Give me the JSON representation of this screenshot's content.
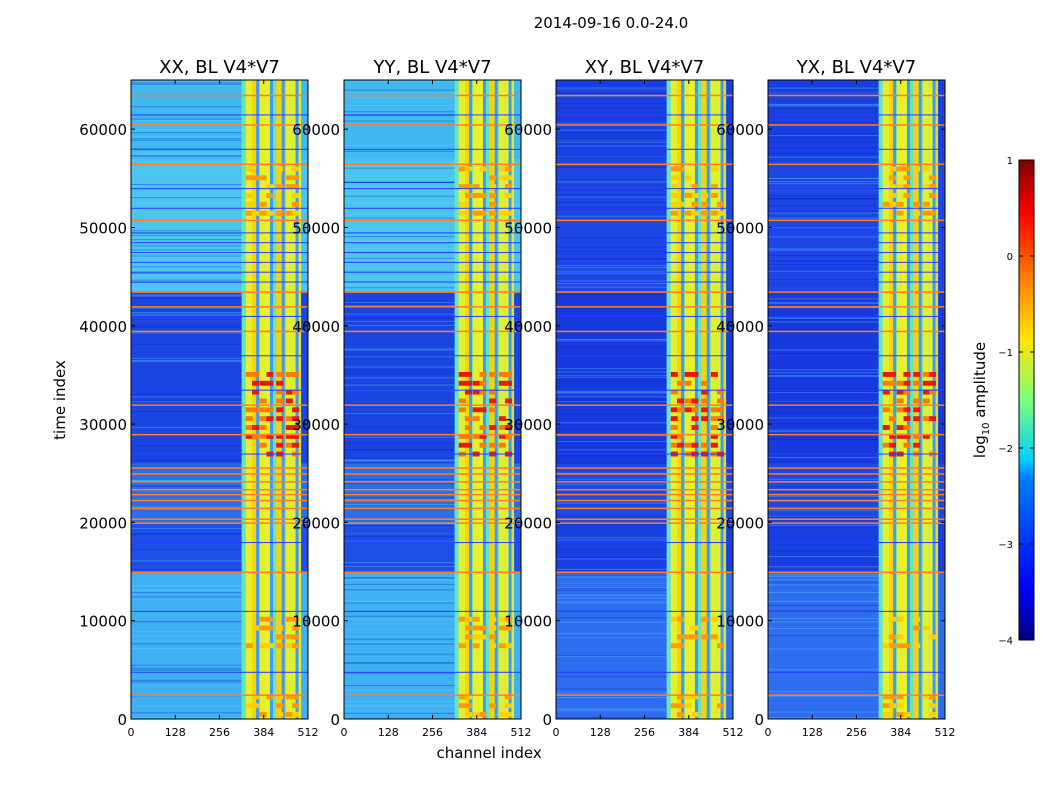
{
  "figure": {
    "suptitle": "2014-09-16 0.0-24.0",
    "colors": {
      "background": "#ffffff",
      "spine": "#000000",
      "flag_line": "#ff7f2a",
      "gap_line": "#2a3cff"
    }
  },
  "chart_data": [
    {
      "type": "heatmap",
      "title": "XX, BL V4*V7",
      "xlabel": "",
      "ylabel": "time index",
      "xticks": [
        "0",
        "128",
        "256",
        "384",
        "512"
      ],
      "yticks": [
        "0",
        "10000",
        "20000",
        "30000",
        "40000",
        "50000",
        "60000"
      ],
      "xlim": [
        0,
        512
      ],
      "ylim": [
        0,
        65000
      ],
      "interference_band": [
        320,
        480
      ],
      "colormap": "jet",
      "zlim": [
        -4,
        1
      ]
    },
    {
      "type": "heatmap",
      "title": "YY, BL V4*V7",
      "xlabel": "channel index",
      "ylabel": "",
      "xticks": [
        "0",
        "128",
        "256",
        "384",
        "512"
      ],
      "yticks": [
        "0",
        "10000",
        "20000",
        "30000",
        "40000",
        "50000",
        "60000"
      ],
      "xlim": [
        0,
        512
      ],
      "ylim": [
        0,
        65000
      ],
      "interference_band": [
        320,
        480
      ],
      "colormap": "jet",
      "zlim": [
        -4,
        1
      ]
    },
    {
      "type": "heatmap",
      "title": "XY, BL V4*V7",
      "xlabel": "",
      "ylabel": "",
      "xticks": [
        "0",
        "128",
        "256",
        "384",
        "512"
      ],
      "yticks": [
        "0",
        "10000",
        "20000",
        "30000",
        "40000",
        "50000",
        "60000"
      ],
      "xlim": [
        0,
        512
      ],
      "ylim": [
        0,
        65000
      ],
      "interference_band": [
        320,
        480
      ],
      "colormap": "jet",
      "zlim": [
        -4,
        1
      ]
    },
    {
      "type": "heatmap",
      "title": "YX, BL V4*V7",
      "xlabel": "",
      "ylabel": "",
      "xticks": [
        "0",
        "128",
        "256",
        "384",
        "512"
      ],
      "yticks": [
        "0",
        "10000",
        "20000",
        "30000",
        "40000",
        "50000",
        "60000"
      ],
      "xlim": [
        0,
        512
      ],
      "ylim": [
        0,
        65000
      ],
      "interference_band": [
        320,
        480
      ],
      "colormap": "jet",
      "zlim": [
        -4,
        1
      ]
    }
  ],
  "colorbar": {
    "label": "log10 amplitude",
    "label_base": "log",
    "label_sub": "10",
    "label_rest": " amplitude",
    "ticks": [
      "1",
      "0",
      "−1",
      "−2",
      "−3",
      "−4"
    ],
    "colormap": "jet"
  }
}
